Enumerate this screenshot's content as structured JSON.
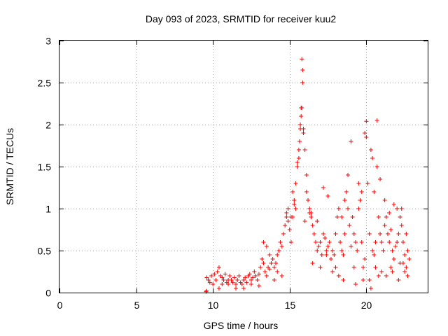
{
  "chart_data": {
    "type": "scatter",
    "title": "Day 093 of 2023, SRMTID for receiver kuu2",
    "xlabel": "GPS time / hours",
    "ylabel": "SRMTID / TECUs",
    "xlim": [
      0,
      24
    ],
    "ylim": [
      0,
      3
    ],
    "xticks": [
      0,
      5,
      10,
      15,
      20
    ],
    "xtick_labels": [
      "0",
      "5",
      "10",
      "15",
      "20"
    ],
    "yticks": [
      0,
      0.5,
      1,
      1.5,
      2,
      2.5,
      3
    ],
    "ytick_labels": [
      "0",
      "0.5",
      "1",
      "1.5",
      "2",
      "2.5",
      "3"
    ],
    "grid": true,
    "marker": "plus",
    "color": "#ff0000",
    "series": [
      {
        "name": "SRMTID",
        "x": [
          9.55,
          9.58,
          9.6,
          9.7,
          9.8,
          9.9,
          10.0,
          10.1,
          10.2,
          10.3,
          10.4,
          10.5,
          10.6,
          10.7,
          10.8,
          10.9,
          11.0,
          11.1,
          11.2,
          11.3,
          11.4,
          11.5,
          11.6,
          11.7,
          11.8,
          11.9,
          12.0,
          12.1,
          12.2,
          12.3,
          12.4,
          12.5,
          12.6,
          12.7,
          12.8,
          12.9,
          13.0,
          13.1,
          13.2,
          13.3,
          13.4,
          13.5,
          13.6,
          13.7,
          13.8,
          13.9,
          14.0,
          14.1,
          14.2,
          14.3,
          14.4,
          14.5,
          14.6,
          14.7,
          14.8,
          14.9,
          15.0,
          15.1,
          15.2,
          15.3,
          15.4,
          15.5,
          15.6,
          15.65,
          15.7,
          15.75,
          15.8,
          15.85,
          15.9,
          16.0,
          16.1,
          16.2,
          16.3,
          16.4,
          16.5,
          16.6,
          16.7,
          16.8,
          16.9,
          17.0,
          17.1,
          17.2,
          17.3,
          17.4,
          17.5,
          17.6,
          17.7,
          17.8,
          17.9,
          18.0,
          18.1,
          18.2,
          18.3,
          18.4,
          18.5,
          18.6,
          18.7,
          18.8,
          18.9,
          19.0,
          19.1,
          19.2,
          19.3,
          19.4,
          19.5,
          19.6,
          19.7,
          19.8,
          19.9,
          20.0,
          20.1,
          20.2,
          20.3,
          20.4,
          20.5,
          20.6,
          20.7,
          20.8,
          20.9,
          21.0,
          21.1,
          21.2,
          21.3,
          21.4,
          21.5,
          21.6,
          21.7,
          21.8,
          21.9,
          22.0,
          22.1,
          22.2,
          22.3,
          22.4,
          22.5,
          22.6,
          22.7,
          22.8,
          15.8,
          15.85,
          15.9,
          15.75,
          15.7,
          15.6,
          15.5,
          16.1,
          16.3,
          19.9,
          20.0,
          20.1,
          20.4,
          20.5,
          19.0,
          18.8,
          18.6,
          18.4,
          17.2,
          17.5,
          16.8,
          21.2,
          21.5,
          21.8,
          22.0,
          22.3,
          22.6,
          19.5,
          19.7,
          20.7,
          20.9,
          14.8,
          14.9,
          15.1,
          15.3,
          13.3,
          13.5,
          13.7,
          10.4,
          10.6,
          11.0,
          11.5,
          12.0,
          12.5,
          13.0,
          14.0,
          14.2,
          14.5,
          16.5,
          17.0,
          17.8,
          18.2,
          19.2,
          20.2,
          20.8,
          21.0,
          21.6,
          22.2,
          22.5,
          22.7,
          15.2,
          15.4,
          16.0,
          16.4,
          17.4,
          18.0,
          18.5,
          19.3,
          19.8,
          20.3,
          20.6,
          21.3,
          21.7,
          22.1,
          22.4
        ],
        "y": [
          0.01,
          0.02,
          0.18,
          0.15,
          0.12,
          0.2,
          0.1,
          0.22,
          0.15,
          0.25,
          0.3,
          0.2,
          0.18,
          0.15,
          0.22,
          0.12,
          0.1,
          0.2,
          0.15,
          0.12,
          0.18,
          0.1,
          0.15,
          0.2,
          0.12,
          0.1,
          0.15,
          0.18,
          0.12,
          0.2,
          0.22,
          0.15,
          0.18,
          0.25,
          0.2,
          0.15,
          0.22,
          0.3,
          0.4,
          0.35,
          0.25,
          0.2,
          0.3,
          0.28,
          0.35,
          0.4,
          0.3,
          0.35,
          0.45,
          0.5,
          0.6,
          0.55,
          0.7,
          0.8,
          0.9,
          0.85,
          0.75,
          0.6,
          0.9,
          1.1,
          1.3,
          1.5,
          1.6,
          1.8,
          2.0,
          2.2,
          2.78,
          2.65,
          1.95,
          1.7,
          1.4,
          1.1,
          1.0,
          0.9,
          0.8,
          0.7,
          0.6,
          0.5,
          0.55,
          0.6,
          0.45,
          0.7,
          0.65,
          0.5,
          0.55,
          0.6,
          0.4,
          0.5,
          0.45,
          0.7,
          0.9,
          1.0,
          0.6,
          0.5,
          0.45,
          0.7,
          1.2,
          1.0,
          0.8,
          0.55,
          0.9,
          0.7,
          0.6,
          0.5,
          1.0,
          1.1,
          0.6,
          0.3,
          0.4,
          2.04,
          1.3,
          0.7,
          1.7,
          0.5,
          0.45,
          0.6,
          2.05,
          0.9,
          0.7,
          0.6,
          0.5,
          0.8,
          0.9,
          0.7,
          0.6,
          0.75,
          0.5,
          0.4,
          0.55,
          0.6,
          0.7,
          0.9,
          1.0,
          0.6,
          0.45,
          0.3,
          0.5,
          0.4,
          2.2,
          2.5,
          1.9,
          2.1,
          1.95,
          1.7,
          1.55,
          1.2,
          0.95,
          1.9,
          1.85,
          1.3,
          1.6,
          1.2,
          1.8,
          1.4,
          1.1,
          0.9,
          1.25,
          1.15,
          0.85,
          1.1,
          0.95,
          1.05,
          1.0,
          0.8,
          0.7,
          1.3,
          1.2,
          1.5,
          1.35,
          0.95,
          1.0,
          0.9,
          1.05,
          0.6,
          0.55,
          0.45,
          0.05,
          0.1,
          0.15,
          0.05,
          0.05,
          0.1,
          0.08,
          0.15,
          0.25,
          0.2,
          0.35,
          0.3,
          0.25,
          0.2,
          0.3,
          0.15,
          0.2,
          0.25,
          0.3,
          0.35,
          0.25,
          0.2,
          1.2,
          1.0,
          0.85,
          0.95,
          0.45,
          0.3,
          0.15,
          0.1,
          0.15,
          0.05,
          0.3,
          0.2,
          0.25,
          0.15,
          0.35
        ]
      }
    ]
  }
}
